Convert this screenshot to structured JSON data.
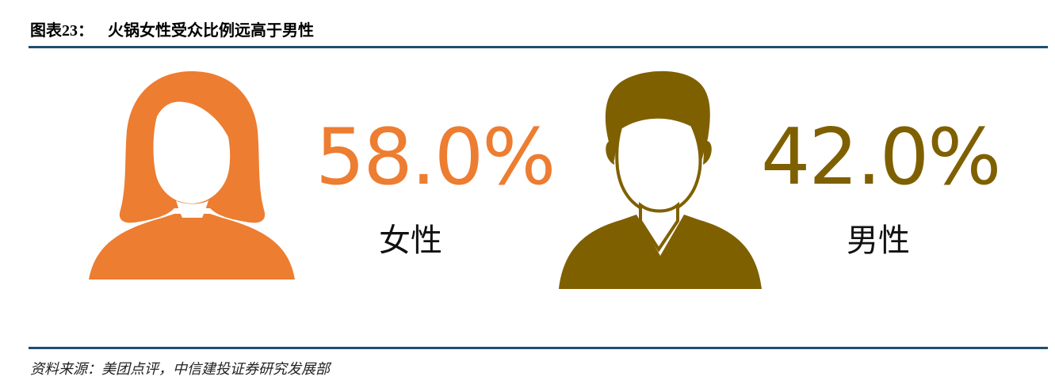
{
  "figure": {
    "title_prefix": "图表",
    "title_number": "23",
    "title_sep": "：",
    "title": "火锅女性受众比例远高于男性",
    "source": "资料来源：美团点评，中信建投证券研究发展部"
  },
  "chart_data": {
    "type": "pictogram",
    "title": "火锅女性受众比例远高于男性",
    "unit": "%",
    "categories": [
      "女性",
      "男性"
    ],
    "values": [
      58.0,
      42.0
    ],
    "value_labels": [
      "58.0%",
      "42.0%"
    ],
    "colors": [
      "#ED7D31",
      "#7F6000"
    ],
    "icons": [
      "female-person-icon",
      "male-person-icon"
    ]
  }
}
